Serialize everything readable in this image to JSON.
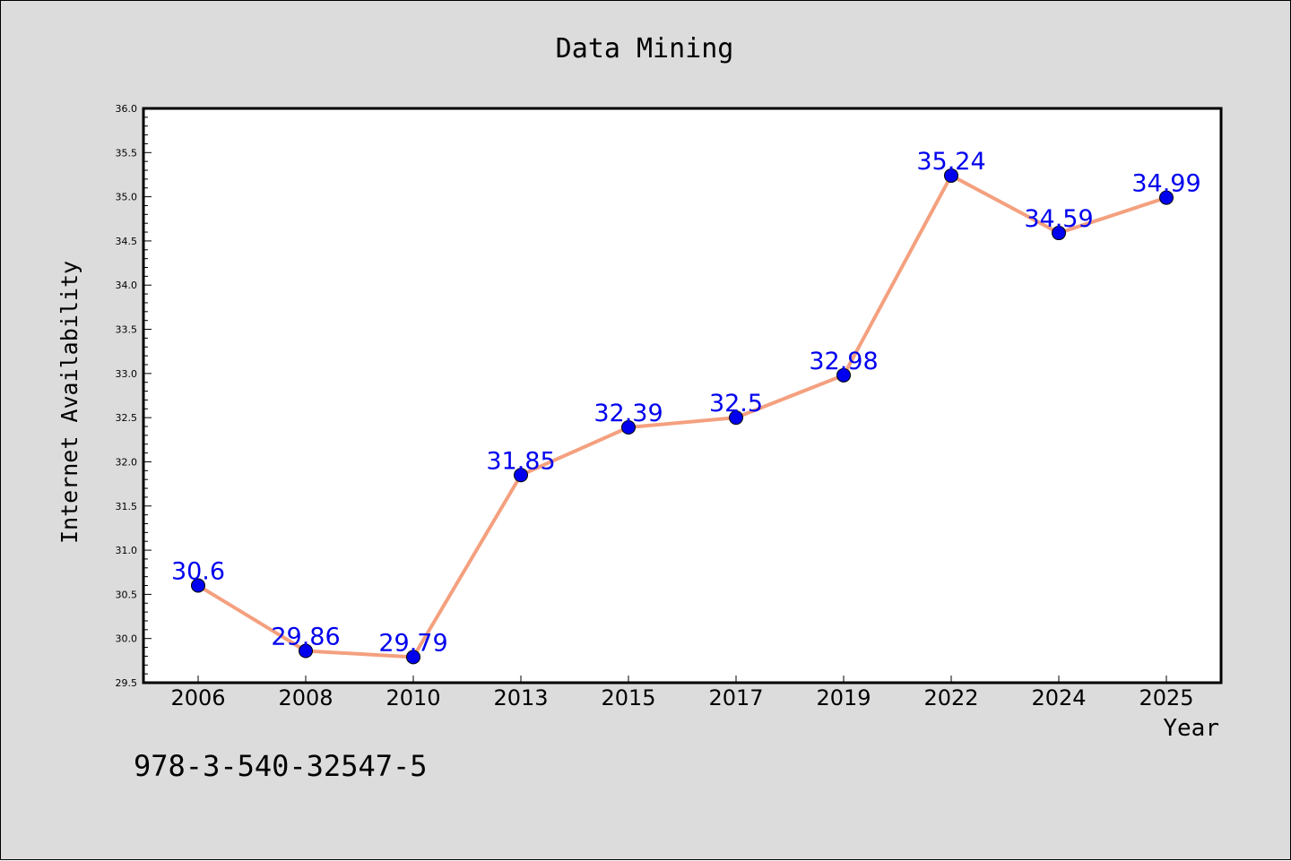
{
  "chart_data": {
    "type": "line",
    "title": "Data Mining",
    "xlabel": "Year",
    "ylabel": "Internet Availability",
    "categories": [
      "2006",
      "2008",
      "2010",
      "2013",
      "2015",
      "2017",
      "2019",
      "2022",
      "2024",
      "2025"
    ],
    "series": [
      {
        "values": [
          30.6,
          29.86,
          29.79,
          31.85,
          32.39,
          32.5,
          32.98,
          35.24,
          34.59,
          34.99
        ],
        "data_labels": [
          "30.6",
          "29.86",
          "29.79",
          "31.85",
          "32.39",
          "32.5",
          "32.98",
          "35.24",
          "34.59",
          "34.99"
        ],
        "line_color": "#f4a07f",
        "marker_color": "#0000ee",
        "label_color": "#0000ee"
      }
    ],
    "ylim": [
      29.5,
      36.0
    ],
    "yticks": [
      "29.5",
      "30.0",
      "30.5",
      "31.0",
      "31.5",
      "32.0",
      "32.5",
      "33.0",
      "33.5",
      "34.0",
      "34.5",
      "35.0",
      "35.5",
      "36.0"
    ],
    "grid": false,
    "legend": "none"
  },
  "footer_text": "978-3-540-32547-5",
  "colors": {
    "figure_background": "#dcdcdc",
    "plot_background": "#ffffff",
    "line": "#f4a07f",
    "marker": "#0000ee"
  }
}
